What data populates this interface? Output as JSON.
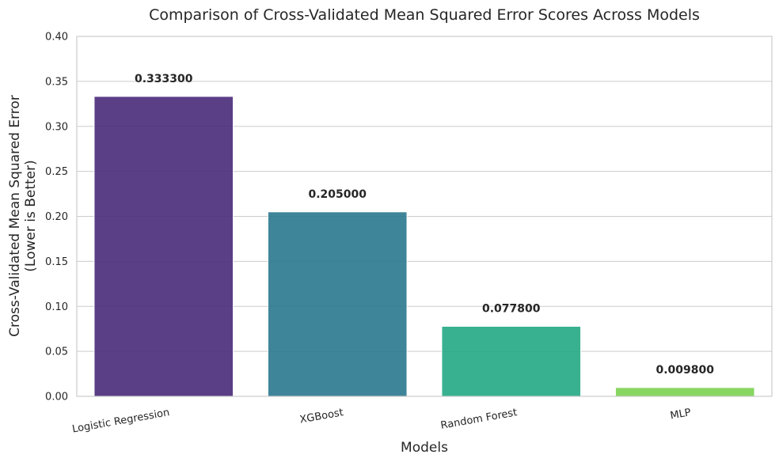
{
  "chart_data": {
    "type": "bar",
    "title": "Comparison of Cross-Validated Mean Squared Error Scores Across Models",
    "xlabel": "Models",
    "ylabel_line1": "Cross-Validated Mean Squared Error",
    "ylabel_line2": "(Lower is Better)",
    "categories": [
      "Logistic Regression",
      "XGBoost",
      "Random Forest",
      "MLP"
    ],
    "values": [
      0.3333,
      0.205,
      0.0778,
      0.0098
    ],
    "value_labels": [
      "0.333300",
      "0.205000",
      "0.077800",
      "0.009800"
    ],
    "colors": [
      "#482979",
      "#2a788e",
      "#22a884",
      "#7ad151"
    ],
    "bar_opacity": 0.9,
    "ylim": [
      0,
      0.4
    ],
    "yticks": [
      0.0,
      0.05,
      0.1,
      0.15,
      0.2,
      0.25,
      0.3,
      0.35,
      0.4
    ],
    "ytick_labels": [
      "0.00",
      "0.05",
      "0.10",
      "0.15",
      "0.20",
      "0.25",
      "0.30",
      "0.35",
      "0.40"
    ],
    "grid": "horizontal",
    "legend": "none"
  }
}
